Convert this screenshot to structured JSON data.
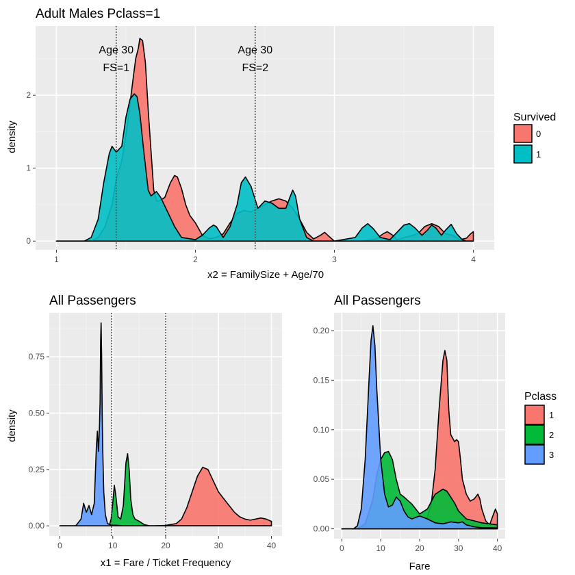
{
  "chart_data": [
    {
      "type": "area",
      "title": "Adult Males Pclass=1",
      "xlabel": "x2 = FamilySize + Age/70",
      "ylabel": "density",
      "xlim": [
        0.85,
        4.15
      ],
      "ylim": [
        -0.12,
        2.95
      ],
      "xticks": [
        "1",
        "2",
        "3",
        "4"
      ],
      "yticks": [
        "0",
        "1",
        "2"
      ],
      "grid": true,
      "legend": {
        "title": "Survived",
        "position": "right",
        "entries": [
          "0",
          "1"
        ]
      },
      "colors": {
        "0": "#F8766D",
        "1": "#00BFC4"
      },
      "vlines": [
        1.43,
        2.43
      ],
      "annotations": [
        {
          "x": 1.43,
          "y": 2.5,
          "lines": [
            "Age 30",
            "FS=1"
          ]
        },
        {
          "x": 2.43,
          "y": 2.5,
          "lines": [
            "Age 30",
            "FS=2"
          ]
        }
      ],
      "series": [
        {
          "name": "0",
          "x": [
            1.0,
            1.25,
            1.3,
            1.35,
            1.4,
            1.43,
            1.47,
            1.5,
            1.53,
            1.55,
            1.57,
            1.59,
            1.6,
            1.62,
            1.64,
            1.66,
            1.68,
            1.7,
            1.72,
            1.74,
            1.78,
            1.82,
            1.85,
            1.87,
            1.9,
            1.93,
            1.96,
            2.0,
            2.05,
            2.1,
            2.15,
            2.2,
            2.25,
            2.3,
            2.35,
            2.4,
            2.45,
            2.5,
            2.55,
            2.6,
            2.65,
            2.7,
            2.75,
            2.8,
            2.85,
            2.9,
            2.93,
            2.97,
            3.0,
            3.2,
            3.3,
            3.35,
            3.38,
            3.42,
            3.45,
            3.6,
            3.65,
            3.7,
            3.75,
            3.8,
            3.85,
            3.9,
            3.95,
            3.98,
            4.0
          ],
          "y": [
            0,
            0,
            0.05,
            0.2,
            0.5,
            0.85,
            1.1,
            1.45,
            1.9,
            2.2,
            2.5,
            2.65,
            2.78,
            2.75,
            2.45,
            1.8,
            1.25,
            0.7,
            0.55,
            0.55,
            0.6,
            0.8,
            0.9,
            0.88,
            0.72,
            0.5,
            0.35,
            0.25,
            0.08,
            0.03,
            0.05,
            0.1,
            0.25,
            0.38,
            0.42,
            0.4,
            0.45,
            0.5,
            0.55,
            0.58,
            0.55,
            0.45,
            0.3,
            0.12,
            0.03,
            0.08,
            0.12,
            0.05,
            0,
            0,
            0.03,
            0.1,
            0.13,
            0.08,
            0.02,
            0.1,
            0.2,
            0.24,
            0.2,
            0.1,
            0.08,
            0.02,
            0.04,
            0.1,
            0.13
          ]
        },
        {
          "name": "1",
          "x": [
            1.0,
            1.2,
            1.25,
            1.3,
            1.34,
            1.38,
            1.4,
            1.43,
            1.47,
            1.5,
            1.53,
            1.56,
            1.58,
            1.6,
            1.63,
            1.66,
            1.68,
            1.72,
            1.75,
            1.8,
            1.85,
            1.9,
            2.0,
            2.05,
            2.1,
            2.13,
            2.15,
            2.2,
            2.25,
            2.3,
            2.33,
            2.36,
            2.4,
            2.45,
            2.5,
            2.55,
            2.6,
            2.65,
            2.68,
            2.7,
            2.72,
            2.75,
            2.8,
            2.85,
            3.0,
            3.15,
            3.2,
            3.24,
            3.28,
            3.33,
            3.4,
            3.45,
            3.5,
            3.54,
            3.58,
            3.63,
            3.67,
            3.7,
            3.73,
            3.77,
            3.8,
            3.84,
            3.88,
            3.92,
            3.95,
            4.0
          ],
          "y": [
            0,
            0,
            0.05,
            0.3,
            0.8,
            1.2,
            1.3,
            1.22,
            1.3,
            1.7,
            1.95,
            2.02,
            1.98,
            1.75,
            1.2,
            0.7,
            0.62,
            0.68,
            0.6,
            0.4,
            0.2,
            0.05,
            0.02,
            0.08,
            0.18,
            0.22,
            0.2,
            0.05,
            0.2,
            0.5,
            0.8,
            0.88,
            0.75,
            0.45,
            0.55,
            0.52,
            0.45,
            0.45,
            0.6,
            0.7,
            0.62,
            0.3,
            0.05,
            0,
            0,
            0.05,
            0.18,
            0.24,
            0.17,
            0.05,
            0.02,
            0.12,
            0.22,
            0.24,
            0.18,
            0.08,
            0.15,
            0.22,
            0.18,
            0.08,
            0.15,
            0.23,
            0.1,
            0.02,
            0,
            0
          ]
        }
      ]
    },
    {
      "type": "area",
      "title": "All Passengers",
      "xlabel": "x1 = Fare / Ticket Frequency",
      "ylabel": "density",
      "xlim": [
        -2,
        42
      ],
      "ylim": [
        -0.045,
        0.945
      ],
      "xticks": [
        "0",
        "10",
        "20",
        "30",
        "40"
      ],
      "yticks": [
        "0.00",
        "0.25",
        "0.50",
        "0.75"
      ],
      "grid": true,
      "vlines": [
        9.8,
        20
      ],
      "colors": {
        "1": "#F8766D",
        "2": "#00BA38",
        "3": "#619CFF"
      },
      "series": [
        {
          "name": "1",
          "x": [
            0,
            18,
            20,
            22,
            23,
            24,
            25,
            26,
            27,
            28,
            29,
            30,
            31,
            32,
            33,
            34,
            35,
            36,
            37,
            38,
            39,
            40
          ],
          "y": [
            0,
            0,
            0.002,
            0.01,
            0.03,
            0.08,
            0.15,
            0.22,
            0.26,
            0.25,
            0.2,
            0.15,
            0.12,
            0.09,
            0.06,
            0.04,
            0.03,
            0.025,
            0.03,
            0.035,
            0.03,
            0.02
          ]
        },
        {
          "name": "2",
          "x": [
            0,
            9.3,
            9.7,
            10.0,
            10.3,
            10.6,
            11.0,
            11.5,
            12.0,
            12.5,
            12.8,
            13.1,
            13.4,
            13.8,
            14.2,
            15.0,
            16.0,
            17.0,
            20.0,
            40.0
          ],
          "y": [
            0,
            0,
            0.03,
            0.1,
            0.18,
            0.13,
            0.04,
            0.03,
            0.09,
            0.28,
            0.32,
            0.25,
            0.12,
            0.05,
            0.03,
            0.02,
            0.005,
            0,
            0,
            0
          ]
        },
        {
          "name": "3",
          "x": [
            0,
            3,
            4,
            4.5,
            5,
            5.5,
            6,
            6.5,
            6.9,
            7.1,
            7.3,
            7.5,
            7.6,
            7.7,
            7.8,
            7.9,
            8.0,
            8.1,
            8.3,
            8.6,
            9.0,
            9.5,
            10.0,
            11.0,
            12.0,
            40.0
          ],
          "y": [
            0,
            0,
            0.03,
            0.1,
            0.06,
            0.09,
            0.05,
            0.1,
            0.35,
            0.42,
            0.33,
            0.45,
            0.55,
            0.82,
            0.9,
            0.75,
            0.5,
            0.35,
            0.15,
            0.05,
            0.01,
            0.005,
            0.003,
            0.002,
            0,
            0
          ]
        }
      ]
    },
    {
      "type": "area",
      "title": "All Passengers",
      "xlabel": "Fare",
      "ylabel": "",
      "xlim": [
        -2,
        42
      ],
      "ylim": [
        -0.01,
        0.218
      ],
      "xticks": [
        "0",
        "10",
        "20",
        "30",
        "40"
      ],
      "yticks": [
        "0.00",
        "0.05",
        "0.10",
        "0.15",
        "0.20"
      ],
      "grid": true,
      "legend": {
        "title": "Pclass",
        "position": "right",
        "entries": [
          "1",
          "2",
          "3"
        ]
      },
      "colors": {
        "1": "#F8766D",
        "2": "#00BA38",
        "3": "#619CFF"
      },
      "series": [
        {
          "name": "1",
          "x": [
            0,
            14,
            18,
            20,
            21,
            22,
            23,
            24,
            25,
            26,
            26.5,
            27,
            27.5,
            28,
            29,
            29.5,
            30,
            30.5,
            31,
            32,
            33,
            34,
            35,
            35.5,
            36,
            37,
            38,
            39,
            39.5,
            40
          ],
          "y": [
            0,
            0,
            0.001,
            0.003,
            0.006,
            0.012,
            0.025,
            0.06,
            0.12,
            0.17,
            0.18,
            0.17,
            0.12,
            0.095,
            0.088,
            0.09,
            0.088,
            0.07,
            0.05,
            0.035,
            0.028,
            0.03,
            0.035,
            0.03,
            0.02,
            0.008,
            0.004,
            0.015,
            0.02,
            0.015
          ]
        },
        {
          "name": "2",
          "x": [
            0,
            4,
            6,
            8,
            9,
            10,
            11,
            12,
            13,
            14,
            15,
            16,
            18,
            20,
            22,
            24,
            26,
            27,
            28,
            29,
            30,
            32,
            34,
            36,
            38,
            40
          ],
          "y": [
            0,
            0,
            0.005,
            0.03,
            0.055,
            0.07,
            0.077,
            0.078,
            0.07,
            0.05,
            0.035,
            0.032,
            0.025,
            0.015,
            0.02,
            0.035,
            0.04,
            0.038,
            0.032,
            0.026,
            0.018,
            0.01,
            0.008,
            0.006,
            0.005,
            0.004
          ]
        },
        {
          "name": "3",
          "x": [
            0,
            3,
            4,
            5,
            6,
            7,
            7.5,
            8,
            8.5,
            9,
            10,
            11,
            12,
            13,
            14,
            15,
            16,
            17,
            18,
            20,
            22,
            24,
            26,
            28,
            30,
            31,
            32,
            34,
            36,
            38,
            40
          ],
          "y": [
            0,
            0,
            0.003,
            0.02,
            0.07,
            0.15,
            0.19,
            0.205,
            0.185,
            0.14,
            0.07,
            0.035,
            0.022,
            0.024,
            0.032,
            0.028,
            0.018,
            0.012,
            0.01,
            0.013,
            0.01,
            0.006,
            0.005,
            0.007,
            0.006,
            0.007,
            0.004,
            0.002,
            0.001,
            0.001,
            0.001
          ]
        }
      ]
    }
  ]
}
